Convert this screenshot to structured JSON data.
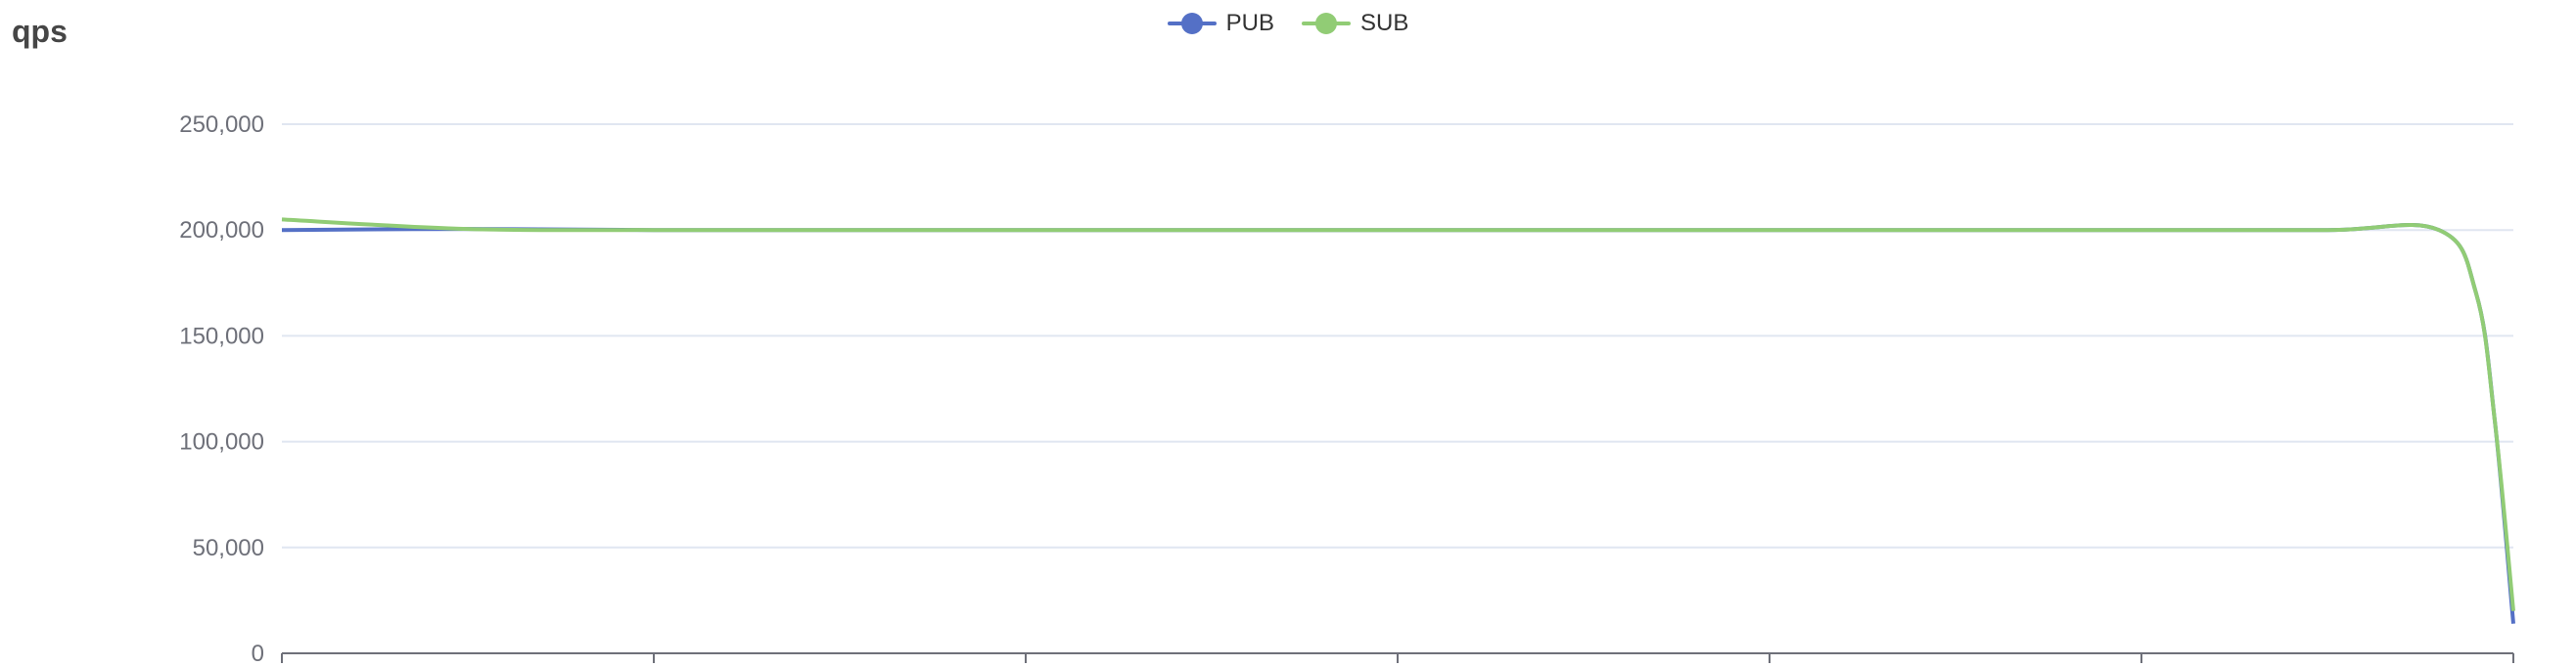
{
  "chart_data": {
    "type": "line",
    "title": "qps",
    "xlabel": "",
    "ylabel": "",
    "ylim": [
      0,
      250000
    ],
    "yticks": [
      0,
      50000,
      100000,
      150000,
      200000,
      250000
    ],
    "ytick_labels": [
      "0",
      "50,000",
      "100,000",
      "150,000",
      "200,000",
      "250,000"
    ],
    "x": [
      0,
      5,
      10,
      15,
      20,
      25,
      30,
      35,
      40,
      45,
      50,
      55,
      58,
      59,
      59.5,
      60
    ],
    "grid": true,
    "legend": "top-center",
    "series": [
      {
        "name": "PUB",
        "color": "#5470c6",
        "values": [
          200000,
          200500,
          200000,
          200000,
          200000,
          200000,
          200000,
          200000,
          200000,
          200000,
          200000,
          200000,
          200000,
          170000,
          110000,
          14000
        ]
      },
      {
        "name": "SUB",
        "color": "#91cc75",
        "values": [
          205000,
          200500,
          200000,
          200000,
          200000,
          200000,
          200000,
          200000,
          200000,
          200000,
          200000,
          200000,
          200000,
          170000,
          110000,
          20000
        ]
      }
    ]
  }
}
